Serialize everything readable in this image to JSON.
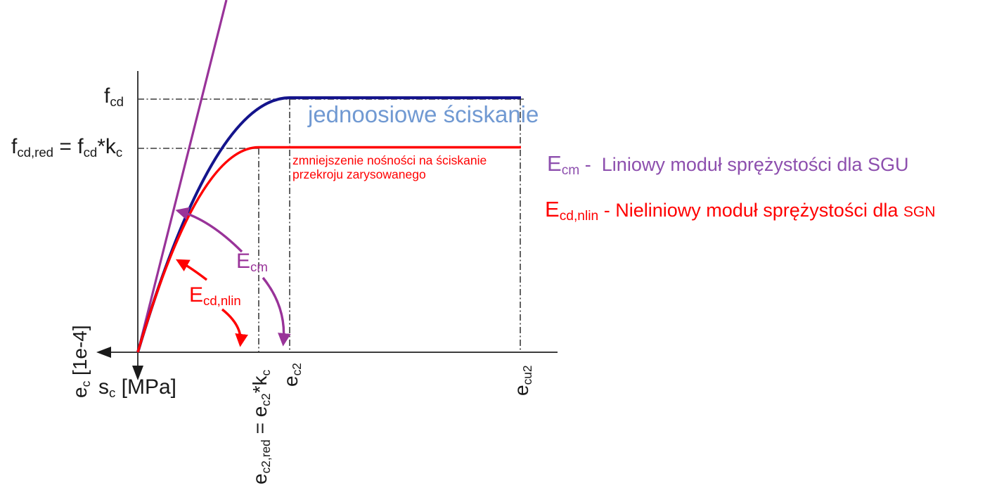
{
  "colors": {
    "curve_navy": "#14148c",
    "curve_red": "#ff0000",
    "curve_purple": "#993399",
    "uniaxial_text_blue": "#7099d2",
    "legend_purple": "#8d4fae",
    "axis_gray": "#3c3c3c",
    "label_black": "#1a1a1a"
  },
  "axes": {
    "x_label_parts": [
      {
        "t": "e"
      },
      {
        "s": "c"
      },
      {
        "t": " [1e-4]"
      }
    ],
    "y_label_parts": [
      {
        "t": "s"
      },
      {
        "s": "c"
      },
      {
        "t": " [MPa]"
      }
    ]
  },
  "y_axis_labels": {
    "fcd": [
      {
        "t": "f"
      },
      {
        "s": "cd"
      }
    ],
    "fcdred": [
      {
        "t": "f"
      },
      {
        "s": "cd,red"
      },
      {
        "t": " = f"
      },
      {
        "s": "cd"
      },
      {
        "t": "*k"
      },
      {
        "s": "c"
      }
    ]
  },
  "x_axis_labels": {
    "ec2red": [
      {
        "t": "e"
      },
      {
        "s": "c2,red"
      },
      {
        "t": " = e"
      },
      {
        "s": "c2"
      },
      {
        "t": "*k"
      },
      {
        "s": "c"
      }
    ],
    "ec2": [
      {
        "t": "e"
      },
      {
        "s": "c2"
      }
    ],
    "ecu2": [
      {
        "t": "e"
      },
      {
        "s": "cu2"
      }
    ]
  },
  "annotations": {
    "uniaxial": "jednoosiowe ściskanie",
    "reduction_line1": "zmniejszenie nośności na ściskanie",
    "reduction_line2": "przekroju zarysowanego",
    "ecm_parts": [
      {
        "t": "E"
      },
      {
        "s": "cm"
      }
    ],
    "ecdnlin_parts": [
      {
        "t": "E"
      },
      {
        "s": "cd,nlin"
      }
    ]
  },
  "legend": {
    "line1": {
      "sym": [
        {
          "t": "E"
        },
        {
          "s": "cm"
        }
      ],
      "rest": [
        {
          "t": " -  Liniowy moduł sprężystości dla SGU"
        }
      ]
    },
    "line2": {
      "sym": [
        {
          "t": "E"
        },
        {
          "s": "cd,nlin"
        }
      ],
      "rest": [
        {
          "t": " - Nieliniowy moduł sprężystości dla "
        },
        {
          "sm": "SGN"
        }
      ]
    }
  },
  "chart_data": {
    "type": "line",
    "title": "",
    "xlabel": "ec [1e-4]",
    "ylabel": "sc [MPa]",
    "x_ticks": [
      "ec2,red = ec2*kc",
      "ec2",
      "ecu2"
    ],
    "y_ticks": [
      "fcd,red = fcd*kc",
      "fcd"
    ],
    "grid": false,
    "legend_position": "right",
    "series": [
      {
        "name": "jednoosiowe ściskanie",
        "color": "#14148c",
        "shape": "parabola from origin reaching fcd at strain ec2, then constant plateau fcd up to ecu2"
      },
      {
        "name": "zmniejszenie nośności na ściskanie przekroju zarysowanego",
        "color": "#ff0000",
        "shape": "parabola from origin reaching fcd,red = fcd*kc at strain ec2,red = ec2*kc, then constant plateau up to ecu2"
      },
      {
        "name": "Ecm - Liniowy moduł sprężystości dla SGU",
        "color": "#993399",
        "shape": "straight line from origin with slope Ecm (secant linear modulus)"
      },
      {
        "name": "Ecd,nlin - Nieliniowy moduł sprężystości dla SGN",
        "color": "#ff0000",
        "shape": "tangent/secant to red nonlinear curve near origin"
      }
    ]
  }
}
